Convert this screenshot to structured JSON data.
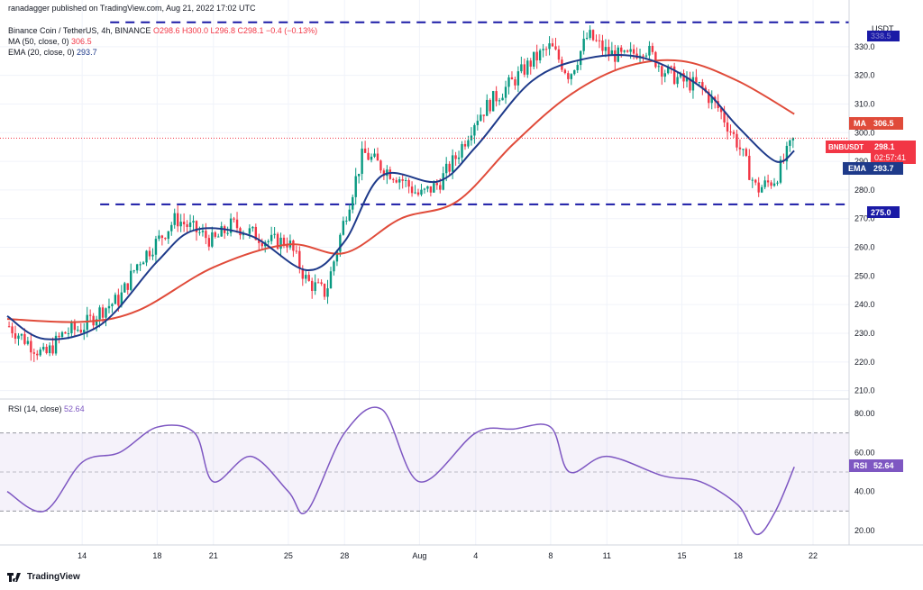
{
  "header": {
    "publisher": "ranadagger published on TradingView.com, Aug 21, 2022 17:02 UTC",
    "symbol": "Binance Coin / TetherUS, 4h, BINANCE",
    "ohlc": "O298.6 H300.0 L296.8 C298.1 −0.4 (−0.13%)",
    "ma_label": "MA (50, close, 0)",
    "ma_value": "306.5",
    "ema_label": "EMA (20, close, 0)",
    "ema_value": "293.7"
  },
  "price_axis": {
    "currency": "USDT",
    "ticks": [
      "330.0",
      "320.0",
      "310.0",
      "300.0",
      "290.0",
      "280.0",
      "270.0",
      "260.0",
      "250.0",
      "240.0",
      "230.0",
      "220.0",
      "210.0"
    ]
  },
  "time_axis": {
    "ticks": [
      "14",
      "18",
      "21",
      "25",
      "28",
      "Aug",
      "4",
      "8",
      "11",
      "15",
      "18",
      "22"
    ]
  },
  "tags": {
    "ma": {
      "name": "MA",
      "value": "306.5"
    },
    "symbol": {
      "name": "BNBUSDT",
      "value": "298.1",
      "countdown": "02:57:41"
    },
    "ema": {
      "name": "EMA",
      "value": "293.7"
    },
    "support": {
      "value": "275.0"
    },
    "resistance": {
      "value": "338.5"
    },
    "rsi": {
      "name": "RSI",
      "value": "52.64"
    }
  },
  "rsi_panel": {
    "label": "RSI (14, close)",
    "value": "52.64",
    "ticks": [
      "80.00",
      "60.00",
      "40.00",
      "20.00"
    ]
  },
  "footer": {
    "brand": "TradingView"
  },
  "colors": {
    "up": "#089981",
    "down": "#f23645",
    "ma": "#e04b3a",
    "ema": "#1e3a8a",
    "rsi": "#7e57c2",
    "levels": "#1a1aa6"
  },
  "chart_data": {
    "type": "candlestick",
    "title": "Binance Coin / TetherUS, 4h, BINANCE",
    "ylim": [
      208,
      340
    ],
    "x_dates": [
      "Jul 10",
      "Jul 14",
      "Jul 18",
      "Jul 21",
      "Jul 25",
      "Jul 28",
      "Aug 1",
      "Aug 4",
      "Aug 8",
      "Aug 11",
      "Aug 15",
      "Aug 18",
      "Aug 22"
    ],
    "close_path": [
      [
        "Jul 10",
        233
      ],
      [
        "Jul 12",
        222
      ],
      [
        "Jul 13",
        230
      ],
      [
        "Jul 14",
        232
      ],
      [
        "Jul 15",
        238
      ],
      [
        "Jul 16",
        242
      ],
      [
        "Jul 17",
        255
      ],
      [
        "Jul 18",
        262
      ],
      [
        "Jul 19",
        270
      ],
      [
        "Jul 20",
        266
      ],
      [
        "Jul 21",
        262
      ],
      [
        "Jul 22",
        268
      ],
      [
        "Jul 23",
        265
      ],
      [
        "Jul 24",
        262
      ],
      [
        "Jul 25",
        262
      ],
      [
        "Jul 26",
        248
      ],
      [
        "Jul 27",
        244
      ],
      [
        "Jul 28",
        270
      ],
      [
        "Jul 29",
        293
      ],
      [
        "Jul 30",
        288
      ],
      [
        "Jul 31",
        284
      ],
      [
        "Aug 1",
        278
      ],
      [
        "Aug 2",
        282
      ],
      [
        "Aug 3",
        292
      ],
      [
        "Aug 4",
        305
      ],
      [
        "Aug 5",
        312
      ],
      [
        "Aug 6",
        318
      ],
      [
        "Aug 7",
        325
      ],
      [
        "Aug 8",
        330
      ],
      [
        "Aug 9",
        320
      ],
      [
        "Aug 10",
        334
      ],
      [
        "Aug 11",
        328
      ],
      [
        "Aug 12",
        326
      ],
      [
        "Aug 13",
        330
      ],
      [
        "Aug 14",
        322
      ],
      [
        "Aug 15",
        318
      ],
      [
        "Aug 16",
        316
      ],
      [
        "Aug 17",
        308
      ],
      [
        "Aug 18",
        296
      ],
      [
        "Aug 19",
        280
      ],
      [
        "Aug 20",
        284
      ],
      [
        "Aug 21",
        298.1
      ]
    ],
    "series": [
      {
        "name": "MA (50, close, 0)",
        "last": 306.5,
        "points": [
          [
            "Jul 10",
            235
          ],
          [
            "Jul 14",
            234
          ],
          [
            "Jul 17",
            238
          ],
          [
            "Jul 21",
            253
          ],
          [
            "Jul 25",
            261
          ],
          [
            "Jul 28",
            258
          ],
          [
            "Jul 31",
            270
          ],
          [
            "Aug 3",
            276
          ],
          [
            "Aug 6",
            296
          ],
          [
            "Aug 9",
            313
          ],
          [
            "Aug 12",
            323
          ],
          [
            "Aug 15",
            325
          ],
          [
            "Aug 18",
            318
          ],
          [
            "Aug 21",
            306.5
          ]
        ]
      },
      {
        "name": "EMA (20, close, 0)",
        "last": 293.7,
        "points": [
          [
            "Jul 10",
            236
          ],
          [
            "Jul 12",
            228
          ],
          [
            "Jul 15",
            233
          ],
          [
            "Jul 18",
            255
          ],
          [
            "Jul 20",
            266
          ],
          [
            "Jul 23",
            264
          ],
          [
            "Jul 26",
            252
          ],
          [
            "Jul 28",
            262
          ],
          [
            "Jul 30",
            285
          ],
          [
            "Aug 2",
            283
          ],
          [
            "Aug 4",
            295
          ],
          [
            "Aug 7",
            318
          ],
          [
            "Aug 10",
            326
          ],
          [
            "Aug 13",
            326
          ],
          [
            "Aug 16",
            316
          ],
          [
            "Aug 18",
            302
          ],
          [
            "Aug 20",
            290
          ],
          [
            "Aug 21",
            293.7
          ]
        ]
      }
    ],
    "levels": [
      {
        "value": 338.5
      },
      {
        "value": 275.0
      }
    ],
    "rsi": {
      "name": "RSI (14, close)",
      "last": 52.64,
      "ylim": [
        14,
        86
      ],
      "upper": 70,
      "lower": 30,
      "points": [
        [
          "Jul 10",
          40
        ],
        [
          "Jul 12",
          30
        ],
        [
          "Jul 14",
          55
        ],
        [
          "Jul 16",
          60
        ],
        [
          "Jul 18",
          73
        ],
        [
          "Jul 20",
          70
        ],
        [
          "Jul 21",
          45
        ],
        [
          "Jul 23",
          58
        ],
        [
          "Jul 25",
          40
        ],
        [
          "Jul 26",
          30
        ],
        [
          "Jul 28",
          70
        ],
        [
          "Jul 30",
          82
        ],
        [
          "Aug 1",
          45
        ],
        [
          "Aug 4",
          70
        ],
        [
          "Aug 6",
          72
        ],
        [
          "Aug 8",
          73
        ],
        [
          "Aug 9",
          50
        ],
        [
          "Aug 11",
          58
        ],
        [
          "Aug 14",
          48
        ],
        [
          "Aug 16",
          45
        ],
        [
          "Aug 18",
          33
        ],
        [
          "Aug 19",
          18
        ],
        [
          "Aug 20",
          30
        ],
        [
          "Aug 21",
          52.64
        ]
      ]
    }
  }
}
